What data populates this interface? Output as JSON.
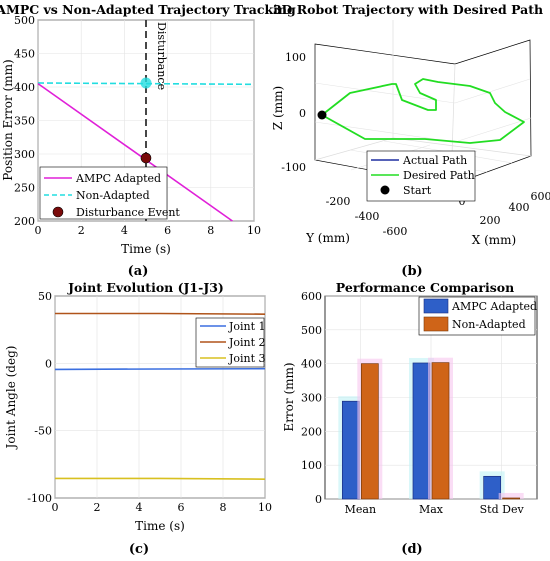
{
  "chart_data": [
    {
      "type": "line",
      "panel_label": "(a)",
      "title": "AMPC vs Non-Adapted Trajectory Tracking",
      "xlabel": "Time (s)",
      "ylabel": "Position Error (mm)",
      "xlim": [
        0,
        10
      ],
      "ylim": [
        200,
        500
      ],
      "xticks": [
        0,
        2,
        4,
        6,
        8,
        10
      ],
      "yticks": [
        200,
        250,
        300,
        350,
        400,
        450,
        500
      ],
      "grid": true,
      "legend_position": "bottom-left",
      "colors": {
        "ampc": "#e020d8",
        "nonadapted": "#22dde0",
        "event": "#7a0a0a"
      },
      "series": [
        {
          "name": "AMPC Adapted",
          "style": "solid",
          "x": [
            0,
            9
          ],
          "y": [
            405,
            200
          ]
        },
        {
          "name": "Non-Adapted",
          "style": "dashed",
          "x": [
            0,
            10
          ],
          "y": [
            406,
            404
          ]
        },
        {
          "name": "Disturbance Event",
          "style": "marker",
          "x": [
            5
          ],
          "y": [
            294
          ]
        }
      ],
      "annotations": [
        {
          "text": "Disturbance",
          "x": 5,
          "style": "vertical-dashed-line"
        },
        {
          "style": "highlight-marker",
          "x": 5,
          "y": 406
        }
      ]
    },
    {
      "type": "line",
      "panel_label": "(b)",
      "title": "3D Robot Trajectory with Desired Path",
      "xlabel": "X (mm)",
      "ylabel": "Y (mm)",
      "zlabel": "Z (mm)",
      "xticks": [
        0,
        200,
        400,
        600
      ],
      "yticks": [
        -200,
        -400,
        -600
      ],
      "zticks": [
        100,
        0,
        -100
      ],
      "grid": true,
      "legend_position": "bottom-left",
      "colors": {
        "actual": "#1f2fa0",
        "desired": "#22dd22",
        "start": "#000000"
      },
      "series": [
        {
          "name": "Actual Path",
          "style": "solid"
        },
        {
          "name": "Desired Path",
          "style": "solid"
        },
        {
          "name": "Start",
          "style": "marker"
        }
      ]
    },
    {
      "type": "line",
      "panel_label": "(c)",
      "title": "Joint Evolution (J1-J3)",
      "xlabel": "Time (s)",
      "ylabel": "Joint Angle (deg)",
      "xlim": [
        0,
        10
      ],
      "ylim": [
        -100,
        50
      ],
      "xticks": [
        0,
        2,
        4,
        6,
        8,
        10
      ],
      "yticks": [
        -100,
        -50,
        0,
        50
      ],
      "grid": true,
      "legend_position": "top-right",
      "colors": {
        "j1": "#3b6fe0",
        "j2": "#b0541a",
        "j3": "#d8c020"
      },
      "series": [
        {
          "name": "Joint 1",
          "x": [
            0,
            5,
            10
          ],
          "y": [
            -4.5,
            -4.2,
            -4
          ]
        },
        {
          "name": "Joint 2",
          "x": [
            0,
            5,
            10
          ],
          "y": [
            37,
            37,
            36.5
          ]
        },
        {
          "name": "Joint 3",
          "x": [
            0,
            5,
            10
          ],
          "y": [
            -85.5,
            -85.5,
            -86
          ]
        }
      ]
    },
    {
      "type": "bar",
      "panel_label": "(d)",
      "title": "Performance Comparison",
      "xlabel": "",
      "ylabel": "Error (mm)",
      "ylim": [
        0,
        600
      ],
      "yticks": [
        0,
        100,
        200,
        300,
        400,
        500,
        600
      ],
      "grid": true,
      "legend_position": "top-right",
      "categories": [
        "Mean",
        "Max",
        "Std Dev"
      ],
      "colors": {
        "ampc": "#2e5fc8",
        "nonadapted": "#cf6418"
      },
      "series": [
        {
          "name": "AMPC Adapted",
          "values": [
            289,
            402,
            67
          ]
        },
        {
          "name": "Non-Adapted",
          "values": [
            400,
            403,
            3
          ]
        }
      ]
    }
  ]
}
